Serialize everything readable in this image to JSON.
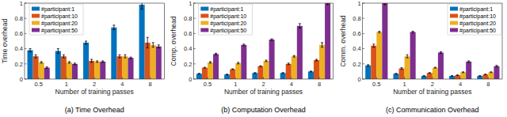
{
  "chart_data": [
    {
      "type": "bar",
      "title": "(a) Time Overhead",
      "x_label": "Number of training passes",
      "y_label": "Time overhead",
      "categories": [
        "0.5",
        "1",
        "2",
        "4",
        "8"
      ],
      "series": [
        {
          "name": "#participant:1",
          "color": "#0072bd",
          "values": [
            0.38,
            0.37,
            0.48,
            0.68,
            0.98
          ],
          "errors": [
            0.02,
            0.03,
            0.02,
            0.03,
            0.06
          ]
        },
        {
          "name": "#participant:10",
          "color": "#d95319",
          "values": [
            0.3,
            0.3,
            0.24,
            0.3,
            0.48
          ],
          "errors": [
            0.02,
            0.02,
            0.02,
            0.02,
            0.07
          ]
        },
        {
          "name": "#participant:20",
          "color": "#edb120",
          "values": [
            0.22,
            0.22,
            0.23,
            0.3,
            0.45
          ],
          "errors": [
            0.01,
            0.01,
            0.01,
            0.02,
            0.03
          ]
        },
        {
          "name": "#participant:50",
          "color": "#7e2f8e",
          "values": [
            0.15,
            0.2,
            0.23,
            0.28,
            0.43
          ],
          "errors": [
            0.01,
            0.01,
            0.01,
            0.01,
            0.02
          ]
        }
      ],
      "ylim": [
        0,
        1
      ],
      "yticks": [
        0,
        0.2,
        0.4,
        0.6,
        0.8,
        1
      ],
      "grid": false,
      "legend": "upper left"
    },
    {
      "type": "bar",
      "title": "(b) Computation Overhead",
      "x_label": "Number of training passes",
      "y_label": "Comp. overhead",
      "categories": [
        "0.5",
        "1",
        "2",
        "4",
        "8"
      ],
      "series": [
        {
          "name": "#participant:1",
          "color": "#0072bd",
          "values": [
            0.07,
            0.06,
            0.08,
            0.08,
            0.1
          ],
          "errors": [
            0.005,
            0.005,
            0.005,
            0.005,
            0.005
          ]
        },
        {
          "name": "#participant:10",
          "color": "#d95319",
          "values": [
            0.15,
            0.13,
            0.17,
            0.2,
            0.25
          ],
          "errors": [
            0.005,
            0.005,
            0.005,
            0.01,
            0.01
          ]
        },
        {
          "name": "#participant:20",
          "color": "#edb120",
          "values": [
            0.22,
            0.21,
            0.24,
            0.3,
            0.45
          ],
          "errors": [
            0.01,
            0.01,
            0.01,
            0.01,
            0.03
          ]
        },
        {
          "name": "#participant:50",
          "color": "#7e2f8e",
          "values": [
            0.33,
            0.45,
            0.52,
            0.7,
            1.0
          ],
          "errors": [
            0.01,
            0.01,
            0.01,
            0.03,
            0.02
          ]
        }
      ],
      "ylim": [
        0,
        1
      ],
      "yticks": [
        0,
        0.2,
        0.4,
        0.6,
        0.8,
        1
      ],
      "grid": false,
      "legend": "upper left"
    },
    {
      "type": "bar",
      "title": "(c) Communication Overhead",
      "x_label": "Number of training passes",
      "y_label": "Comm. overhead",
      "categories": [
        "0.5",
        "1",
        "2",
        "4",
        "8"
      ],
      "series": [
        {
          "name": "#participant:1",
          "color": "#0072bd",
          "values": [
            0.18,
            0.07,
            0.04,
            0.04,
            0.04
          ],
          "errors": [
            0.01,
            0.005,
            0.005,
            0.005,
            0.005
          ]
        },
        {
          "name": "#participant:10",
          "color": "#d95319",
          "values": [
            0.44,
            0.14,
            0.08,
            0.05,
            0.06
          ],
          "errors": [
            0.02,
            0.01,
            0.005,
            0.005,
            0.005
          ]
        },
        {
          "name": "#participant:20",
          "color": "#edb120",
          "values": [
            0.62,
            0.3,
            0.15,
            0.09,
            0.09
          ],
          "errors": [
            0.01,
            0.02,
            0.005,
            0.005,
            0.005
          ]
        },
        {
          "name": "#participant:50",
          "color": "#7e2f8e",
          "values": [
            1.0,
            0.62,
            0.35,
            0.23,
            0.17
          ],
          "errors": [
            0.02,
            0.01,
            0.01,
            0.01,
            0.01
          ]
        }
      ],
      "ylim": [
        0,
        1
      ],
      "yticks": [
        0,
        0.2,
        0.4,
        0.6,
        0.8,
        1
      ],
      "grid": false,
      "legend": "upper right"
    }
  ]
}
